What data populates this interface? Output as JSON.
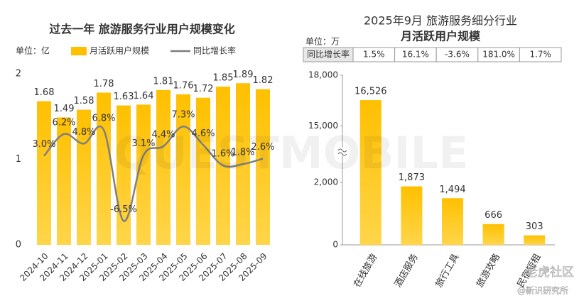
{
  "chart_data": [
    {
      "type": "bar_line",
      "title": "过去一年 旅游服务行业用户规模变化",
      "unit": "单位：亿",
      "categories": [
        "2024-10",
        "2024-11",
        "2024-12",
        "2025-01",
        "2025-02",
        "2025-03",
        "2025-04",
        "2025-05",
        "2025-06",
        "2025-07",
        "2025-08",
        "2025-09"
      ],
      "series": [
        {
          "name": "月活跃用户规模",
          "color": "#ffc000",
          "values": [
            1.68,
            1.49,
            1.58,
            1.78,
            1.63,
            1.64,
            1.81,
            1.76,
            1.72,
            1.85,
            1.89,
            1.82
          ]
        },
        {
          "name": "同比增长率",
          "color": "#7f7f7f",
          "axis": "y2",
          "values": [
            3.0,
            6.2,
            4.8,
            6.8,
            -6.5,
            3.1,
            4.4,
            7.3,
            4.6,
            1.6,
            1.8,
            2.6
          ],
          "value_labels": [
            "3.0%",
            "6.2%",
            "4.8%",
            "6.8%",
            "-6.5%",
            "3.1%",
            "4.4%",
            "7.3%",
            "4.6%",
            "1.6%",
            "1.8%",
            "2.6%"
          ]
        }
      ],
      "ylim": [
        0,
        2
      ],
      "yticks": [
        0,
        1,
        2
      ],
      "y2lim": [
        -10,
        15
      ]
    },
    {
      "type": "bar",
      "title": [
        "2025年9月 旅游服务细分行业",
        "月活跃用户规模"
      ],
      "unit": "单位：万",
      "growth_row": {
        "label": "同比增长率",
        "cells": [
          "1.5%",
          "16.1%",
          "-3.6%",
          "181.0%",
          "1.7%"
        ]
      },
      "categories": [
        "在线旅游",
        "酒店服务",
        "旅行工具",
        "旅游攻略",
        "民宿短租"
      ],
      "values": [
        16526,
        1873,
        1494,
        666,
        303
      ],
      "value_labels": [
        "16,526",
        "1,873",
        "1,494",
        "666",
        "303"
      ],
      "color": "#ffc000",
      "ylim": [
        0,
        18000
      ],
      "y_break": [
        3000,
        13500
      ],
      "yticks": [
        0,
        {
          "value": 2000,
          "label": "2,000"
        },
        {
          "value": 15000,
          "label": "15,000"
        },
        {
          "value": 18000,
          "label": "18,000"
        }
      ]
    },
    {
      "type": "watermark",
      "texts": [
        "QUESTMOBILE",
        "老虎社区",
        "@新识研究所"
      ]
    }
  ]
}
